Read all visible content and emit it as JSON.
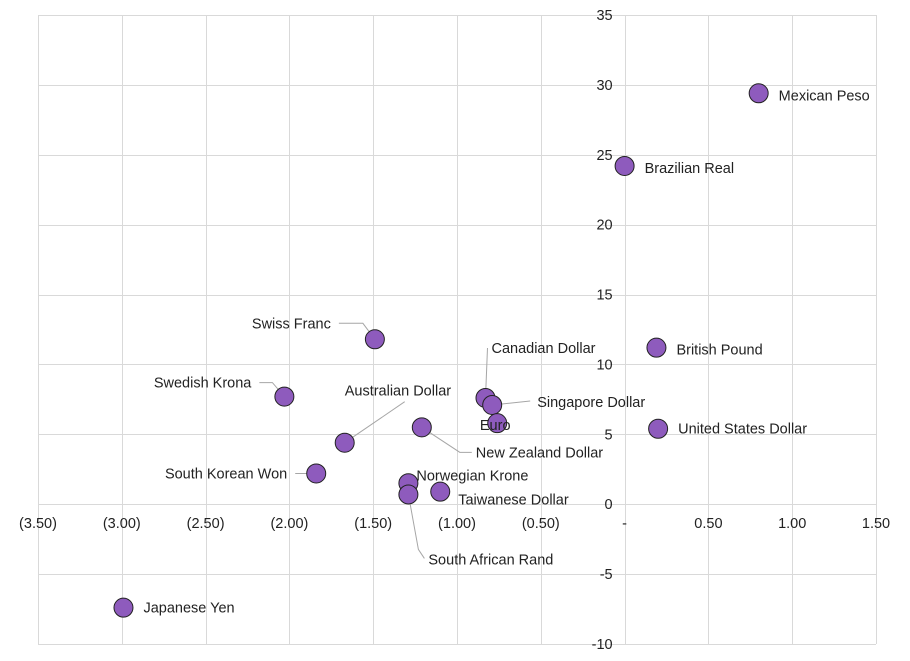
{
  "chart_data": {
    "type": "scatter",
    "title": "",
    "xlabel": "",
    "ylabel": "",
    "xlim": [
      -3.5,
      1.5
    ],
    "ylim": [
      -10,
      35
    ],
    "grid": true,
    "legend": "none",
    "marker_color": "#8e5bbd",
    "x_ticks": [
      {
        "value": -3.5,
        "label": "(3.50)"
      },
      {
        "value": -3.0,
        "label": "(3.00)"
      },
      {
        "value": -2.5,
        "label": "(2.50)"
      },
      {
        "value": -2.0,
        "label": "(2.00)"
      },
      {
        "value": -1.5,
        "label": "(1.50)"
      },
      {
        "value": -1.0,
        "label": "(1.00)"
      },
      {
        "value": -0.5,
        "label": "(0.50)"
      },
      {
        "value": 0.0,
        "label": "-"
      },
      {
        "value": 0.5,
        "label": "0.50"
      },
      {
        "value": 1.0,
        "label": "1.00"
      },
      {
        "value": 1.5,
        "label": "1.50"
      }
    ],
    "y_ticks": [
      {
        "value": -10,
        "label": "-10"
      },
      {
        "value": -5,
        "label": "-5"
      },
      {
        "value": 0,
        "label": "0"
      },
      {
        "value": 5,
        "label": "5"
      },
      {
        "value": 10,
        "label": "10"
      },
      {
        "value": 15,
        "label": "15"
      },
      {
        "value": 20,
        "label": "20"
      },
      {
        "value": 25,
        "label": "25"
      },
      {
        "value": 30,
        "label": "30"
      },
      {
        "value": 35,
        "label": "35"
      }
    ],
    "points": [
      {
        "label": "Mexican Peso",
        "x": 0.8,
        "y": 29.4
      },
      {
        "label": "Brazilian Real",
        "x": 0.0,
        "y": 24.2
      },
      {
        "label": "British Pound",
        "x": 0.19,
        "y": 11.2
      },
      {
        "label": "United States Dollar",
        "x": 0.2,
        "y": 5.4
      },
      {
        "label": "Swiss Franc",
        "x": -1.49,
        "y": 11.8
      },
      {
        "label": "Swedish Krona",
        "x": -2.03,
        "y": 7.7
      },
      {
        "label": "Canadian Dollar",
        "x": -0.83,
        "y": 7.6
      },
      {
        "label": "Singapore Dollar",
        "x": -0.79,
        "y": 7.1
      },
      {
        "label": "Euro",
        "x": -0.76,
        "y": 5.8
      },
      {
        "label": "Australian Dollar",
        "x": -1.67,
        "y": 4.4
      },
      {
        "label": "New Zealand Dollar",
        "x": -1.21,
        "y": 5.5
      },
      {
        "label": "South Korean Won",
        "x": -1.84,
        "y": 2.2
      },
      {
        "label": "Norwegian Krone",
        "x": -1.29,
        "y": 1.5
      },
      {
        "label": "Taiwanese Dollar",
        "x": -1.1,
        "y": 0.9
      },
      {
        "label": "South African Rand",
        "x": -1.29,
        "y": 0.7
      },
      {
        "label": "Japanese Yen",
        "x": -2.99,
        "y": -7.4
      }
    ]
  }
}
